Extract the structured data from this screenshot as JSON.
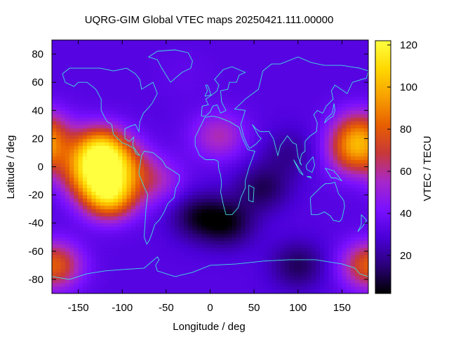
{
  "chart_data": {
    "type": "heatmap",
    "title": "UQRG-GIM Global VTEC maps 20250421.111.00000",
    "xlabel": "Longitude / deg",
    "ylabel": "Latitude / deg",
    "colorbar_label": "VTEC / TECU",
    "xlim": [
      -180,
      180
    ],
    "ylim": [
      -90,
      90
    ],
    "xticks": [
      -150,
      -100,
      -50,
      0,
      50,
      100,
      150
    ],
    "yticks": [
      -80,
      -60,
      -40,
      -20,
      0,
      20,
      40,
      60,
      80
    ],
    "colorbar_range": [
      2,
      122
    ],
    "colorbar_ticks": [
      20,
      40,
      60,
      80,
      100,
      120
    ],
    "colormap": [
      "#000000",
      "#2a0078",
      "#4a00d8",
      "#7a10ff",
      "#a828c8",
      "#c83838",
      "#e86000",
      "#f8a000",
      "#ffd800",
      "#ffff40"
    ],
    "coastline_color": "#40e0e0",
    "features": [
      {
        "lon": -125,
        "lat": 12,
        "value": 110
      },
      {
        "lon": -115,
        "lat": -20,
        "value": 112
      },
      {
        "lon": -140,
        "lat": -5,
        "value": 85
      },
      {
        "lon": -100,
        "lat": 0,
        "value": 75
      },
      {
        "lon": -60,
        "lat": -10,
        "value": 55
      },
      {
        "lon": 165,
        "lat": 10,
        "value": 82
      },
      {
        "lon": 170,
        "lat": 25,
        "value": 75
      },
      {
        "lon": 10,
        "lat": 22,
        "value": 60
      },
      {
        "lon": 20,
        "lat": -40,
        "value": 5
      },
      {
        "lon": -15,
        "lat": -35,
        "value": 8
      },
      {
        "lon": 60,
        "lat": -15,
        "value": 10
      },
      {
        "lon": 90,
        "lat": 10,
        "value": 18
      },
      {
        "lon": 100,
        "lat": -70,
        "value": 10
      },
      {
        "lon": -175,
        "lat": -70,
        "value": 60
      },
      {
        "lon": 178,
        "lat": -70,
        "value": 58
      },
      {
        "lon": -30,
        "lat": 65,
        "value": 35
      },
      {
        "lon": 60,
        "lat": 55,
        "value": 32
      }
    ],
    "background_value": 32
  }
}
